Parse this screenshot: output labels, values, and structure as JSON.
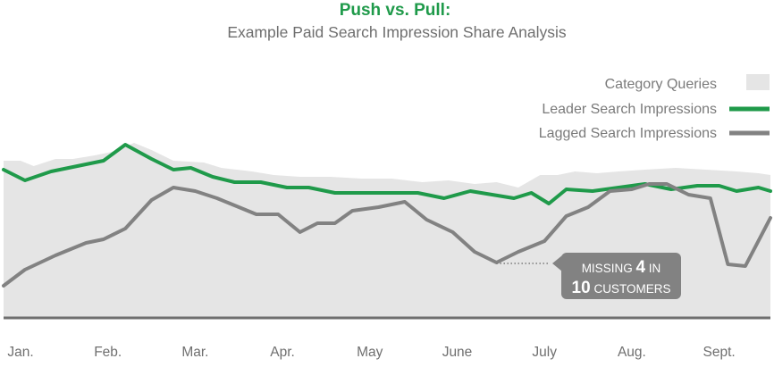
{
  "colors": {
    "area": "#e5e5e5",
    "leader": "#1f9a4a",
    "lagged": "#828282",
    "baseline": "#6f6f6f",
    "callout_bg": "#828282"
  },
  "chart_data": {
    "type": "line",
    "title": "Push vs. Pull:",
    "subtitle": "Example Paid Search Impression Share Analysis",
    "categories": [
      "Jan.",
      "Feb.",
      "Mar.",
      "Apr.",
      "May",
      "June",
      "July",
      "Aug.",
      "Sept."
    ],
    "ylim": [
      0,
      100
    ],
    "grid": false,
    "legend_position": "top-right",
    "legend": [
      "Category Queries",
      "Leader Search Impressions",
      "Lagged Search Impressions"
    ],
    "series": [
      {
        "name": "Category Queries",
        "kind": "area",
        "x": [
          -0.2,
          0.0,
          0.15,
          0.4,
          0.6,
          0.85,
          1.05,
          1.3,
          1.5,
          1.75,
          2.1,
          2.3,
          2.65,
          2.9,
          3.2,
          3.55,
          3.9,
          4.25,
          4.6,
          4.9,
          5.2,
          5.45,
          5.7,
          5.95,
          6.15,
          6.35,
          6.6,
          6.85,
          7.15,
          7.5,
          7.85,
          8.2,
          8.45,
          8.7
        ],
        "values": [
          88,
          88,
          85,
          89,
          89,
          91,
          93,
          98,
          94,
          88,
          87,
          84,
          82,
          80,
          79,
          79,
          78,
          78,
          76,
          77,
          75,
          76,
          73,
          80,
          80,
          82,
          81,
          82,
          83,
          84,
          83,
          82,
          81,
          80
        ]
      },
      {
        "name": "Leader Search Impressions",
        "kind": "line",
        "x": [
          -0.2,
          0.05,
          0.35,
          0.65,
          0.95,
          1.2,
          1.5,
          1.75,
          1.95,
          2.2,
          2.45,
          2.75,
          3.05,
          3.3,
          3.6,
          3.9,
          4.25,
          4.55,
          4.85,
          5.15,
          5.4,
          5.65,
          5.85,
          6.05,
          6.25,
          6.55,
          6.85,
          7.15,
          7.45,
          7.75,
          8.0,
          8.2,
          8.45,
          8.7
        ],
        "values": [
          83,
          77,
          82,
          85,
          88,
          97,
          89,
          83,
          84,
          79,
          76,
          76,
          73,
          73,
          70,
          70,
          70,
          70,
          67,
          71,
          69,
          67,
          70,
          64,
          72,
          71,
          73,
          75,
          72,
          74,
          74,
          71,
          73,
          71
        ]
      },
      {
        "name": "Lagged Search Impressions",
        "kind": "line",
        "x": [
          -0.2,
          0.05,
          0.4,
          0.75,
          0.95,
          1.2,
          1.5,
          1.75,
          2.0,
          2.25,
          2.45,
          2.7,
          2.95,
          3.2,
          3.4,
          3.6,
          3.8,
          4.1,
          4.4,
          4.65,
          4.95,
          5.2,
          5.45,
          5.7,
          6.0,
          6.25,
          6.5,
          6.75,
          7.0,
          7.2,
          7.4,
          7.65,
          7.9,
          8.1,
          8.3,
          8.7
        ],
        "values": [
          18,
          27,
          35,
          42,
          44,
          50,
          66,
          73,
          71,
          67,
          63,
          58,
          58,
          48,
          53,
          53,
          60,
          62,
          65,
          55,
          48,
          37,
          31,
          37,
          43,
          57,
          62,
          71,
          72,
          75,
          75,
          69,
          67,
          30,
          29,
          56
        ]
      }
    ],
    "annotations": [
      {
        "target_series": "Lagged Search Impressions",
        "x": 5.45,
        "y": 31,
        "parts": [
          {
            "text": "MISSING ",
            "bold": false
          },
          {
            "text": "4",
            "bold": true
          },
          {
            "text": " IN",
            "bold": false
          },
          {
            "text": "10",
            "bold": true
          },
          {
            "text": " CUSTOMERS",
            "bold": false
          }
        ]
      }
    ]
  }
}
